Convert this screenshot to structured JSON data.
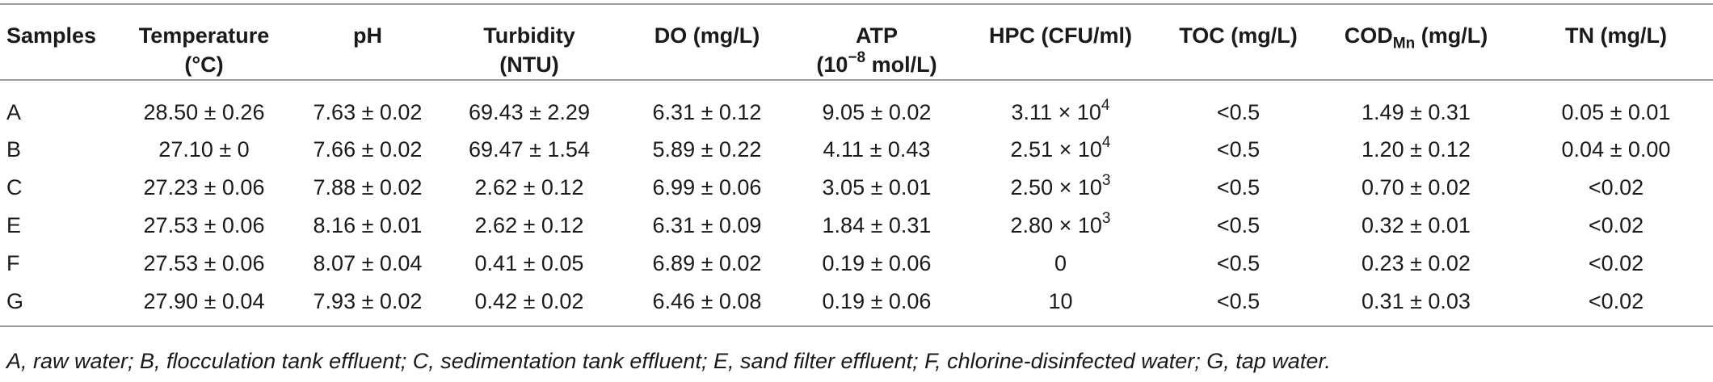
{
  "table": {
    "headers": [
      {
        "main": "Samples"
      },
      {
        "main": "Temperature",
        "line2": "(°C)"
      },
      {
        "main": "pH"
      },
      {
        "main": "Turbidity",
        "line2": "(NTU)"
      },
      {
        "main": "DO (mg/L)"
      },
      {
        "main": "ATP",
        "line2_pre": "(10",
        "line2_sup": "−8",
        "line2_post": " mol/L)"
      },
      {
        "main": "HPC (CFU/ml)"
      },
      {
        "main": "TOC (mg/L)"
      },
      {
        "main_pre": "COD",
        "main_sub": "Mn",
        "main_post": " (mg/L)"
      },
      {
        "main": "TN (mg/L)"
      }
    ],
    "rows": [
      {
        "sample": "A",
        "temperature": "28.50 ± 0.26",
        "ph": "7.63 ± 0.02",
        "turbidity": "69.43 ± 2.29",
        "do": "6.31 ± 0.12",
        "atp": "9.05 ± 0.02",
        "hpc_base": "3.11 × 10",
        "hpc_exp": "4",
        "toc": "<0.5",
        "codmn": "1.49 ± 0.31",
        "tn": "0.05 ± 0.01"
      },
      {
        "sample": "B",
        "temperature": "27.10 ± 0",
        "ph": "7.66 ± 0.02",
        "turbidity": "69.47 ± 1.54",
        "do": "5.89 ± 0.22",
        "atp": "4.11 ± 0.43",
        "hpc_base": "2.51 × 10",
        "hpc_exp": "4",
        "toc": "<0.5",
        "codmn": "1.20 ± 0.12",
        "tn": "0.04 ± 0.00"
      },
      {
        "sample": "C",
        "temperature": "27.23 ± 0.06",
        "ph": "7.88 ± 0.02",
        "turbidity": "2.62 ± 0.12",
        "do": "6.99 ± 0.06",
        "atp": "3.05 ± 0.01",
        "hpc_base": "2.50 × 10",
        "hpc_exp": "3",
        "toc": "<0.5",
        "codmn": "0.70 ± 0.02",
        "tn": "<0.02"
      },
      {
        "sample": "E",
        "temperature": "27.53 ± 0.06",
        "ph": "8.16 ± 0.01",
        "turbidity": "2.62 ± 0.12",
        "do": "6.31 ± 0.09",
        "atp": "1.84 ± 0.31",
        "hpc_base": "2.80 × 10",
        "hpc_exp": "3",
        "toc": "<0.5",
        "codmn": "0.32 ± 0.01",
        "tn": "<0.02"
      },
      {
        "sample": "F",
        "temperature": "27.53 ± 0.06",
        "ph": "8.07 ± 0.04",
        "turbidity": "0.41 ± 0.05",
        "do": "6.89 ± 0.02",
        "atp": "0.19 ± 0.06",
        "hpc_base": "0",
        "hpc_exp": "",
        "toc": "<0.5",
        "codmn": "0.23 ± 0.02",
        "tn": "<0.02"
      },
      {
        "sample": "G",
        "temperature": "27.90 ± 0.04",
        "ph": "7.93 ± 0.02",
        "turbidity": "0.42 ± 0.02",
        "do": "6.46 ± 0.08",
        "atp": "0.19 ± 0.06",
        "hpc_base": "10",
        "hpc_exp": "",
        "toc": "<0.5",
        "codmn": "0.31 ± 0.03",
        "tn": "<0.02"
      }
    ]
  },
  "footnote": "A, raw water; B, flocculation tank effluent; C, sedimentation tank effluent; E, sand filter effluent; F, chlorine-disinfected water; G, tap water."
}
